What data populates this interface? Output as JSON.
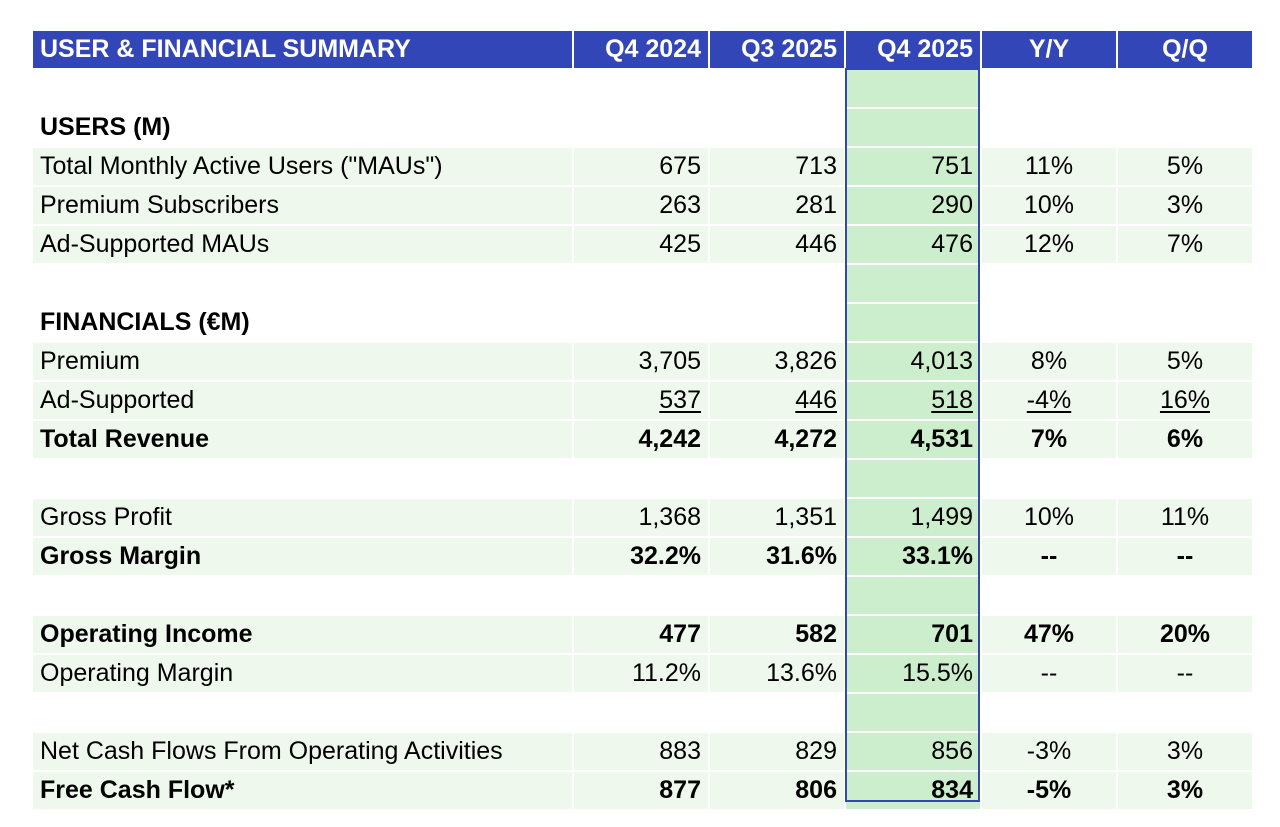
{
  "header": {
    "title": "USER & FINANCIAL SUMMARY",
    "columns": [
      "Q4 2024",
      "Q3 2025",
      "Q4 2025",
      "Y/Y",
      "Q/Q"
    ]
  },
  "rows": [
    {
      "type": "blank"
    },
    {
      "type": "section",
      "label": "USERS (M)"
    },
    {
      "type": "data",
      "label": "Total Monthly Active Users (\"MAUs\")",
      "values": [
        "675",
        "713",
        "751",
        "11%",
        "5%"
      ]
    },
    {
      "type": "data",
      "label": "Premium Subscribers",
      "values": [
        "263",
        "281",
        "290",
        "10%",
        "3%"
      ]
    },
    {
      "type": "data",
      "label": "Ad-Supported MAUs",
      "values": [
        "425",
        "446",
        "476",
        "12%",
        "7%"
      ]
    },
    {
      "type": "blank"
    },
    {
      "type": "section",
      "label": "FINANCIALS (€M)"
    },
    {
      "type": "data",
      "label": "Premium",
      "values": [
        "3,705",
        "3,826",
        "4,013",
        "8%",
        "5%"
      ]
    },
    {
      "type": "data",
      "label": "Ad-Supported",
      "values": [
        "537",
        "446",
        "518",
        "-4%",
        "16%"
      ],
      "underline": true
    },
    {
      "type": "data",
      "label": "Total Revenue",
      "values": [
        "4,242",
        "4,272",
        "4,531",
        "7%",
        "6%"
      ],
      "bold": true
    },
    {
      "type": "blank"
    },
    {
      "type": "data",
      "label": "Gross Profit",
      "values": [
        "1,368",
        "1,351",
        "1,499",
        "10%",
        "11%"
      ]
    },
    {
      "type": "data",
      "label": "Gross Margin",
      "values": [
        "32.2%",
        "31.6%",
        "33.1%",
        "--",
        "--"
      ],
      "bold": true
    },
    {
      "type": "blank"
    },
    {
      "type": "data",
      "label": "Operating Income",
      "values": [
        "477",
        "582",
        "701",
        "47%",
        "20%"
      ],
      "bold": true
    },
    {
      "type": "data",
      "label": "Operating Margin",
      "values": [
        "11.2%",
        "13.6%",
        "15.5%",
        "--",
        "--"
      ]
    },
    {
      "type": "blank"
    },
    {
      "type": "data",
      "label": "Net Cash Flows From Operating Activities",
      "values": [
        "883",
        "829",
        "856",
        "-3%",
        "3%"
      ]
    },
    {
      "type": "data",
      "label": "Free Cash Flow*",
      "values": [
        "877",
        "806",
        "834",
        "-5%",
        "3%"
      ],
      "bold": true
    }
  ],
  "colors": {
    "header_bg": "#3346b8",
    "row_shade": "#eef8ec",
    "highlight_col": "#cdeecc",
    "highlight_border": "#3346b8"
  }
}
